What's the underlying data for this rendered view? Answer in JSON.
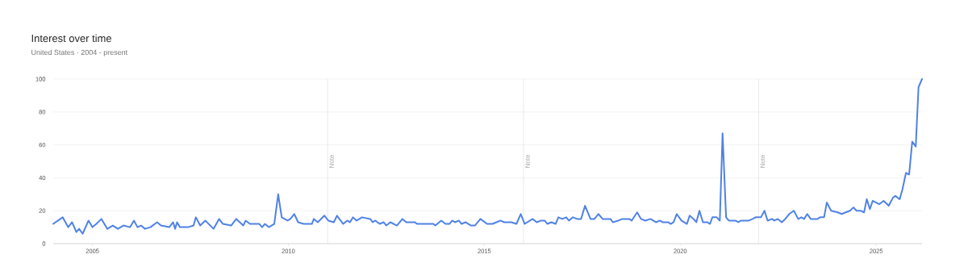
{
  "chart_data": {
    "type": "line",
    "title": "Interest over time",
    "subtitle": "United States · 2004 - present",
    "x": [
      2004.0,
      2004.24,
      2004.38,
      2004.48,
      2004.59,
      2004.66,
      2004.75,
      2004.9,
      2005.0,
      2005.1,
      2005.23,
      2005.38,
      2005.52,
      2005.65,
      2005.79,
      2005.96,
      2006.06,
      2006.15,
      2006.24,
      2006.34,
      2006.48,
      2006.65,
      2006.75,
      2006.96,
      2007.06,
      2007.11,
      2007.16,
      2007.23,
      2007.44,
      2007.58,
      2007.64,
      2007.75,
      2007.88,
      2008.09,
      2008.23,
      2008.33,
      2008.54,
      2008.67,
      2008.85,
      2008.91,
      2009.02,
      2009.26,
      2009.33,
      2009.4,
      2009.5,
      2009.64,
      2009.74,
      2009.83,
      2009.98,
      2010.05,
      2010.15,
      2010.25,
      2010.39,
      2010.6,
      2010.65,
      2010.75,
      2010.92,
      2011.02,
      2011.16,
      2011.24,
      2011.4,
      2011.5,
      2011.57,
      2011.65,
      2011.74,
      2011.88,
      2012.09,
      2012.15,
      2012.22,
      2012.33,
      2012.43,
      2012.5,
      2012.6,
      2012.77,
      2012.91,
      2013.01,
      2013.22,
      2013.29,
      2013.7,
      2013.75,
      2013.9,
      2014.01,
      2014.11,
      2014.18,
      2014.25,
      2014.35,
      2014.42,
      2014.52,
      2014.66,
      2014.76,
      2014.9,
      2015.07,
      2015.21,
      2015.31,
      2015.41,
      2015.51,
      2015.69,
      2015.82,
      2015.93,
      2016.03,
      2016.23,
      2016.34,
      2016.44,
      2016.54,
      2016.61,
      2016.71,
      2016.82,
      2016.89,
      2016.99,
      2017.09,
      2017.16,
      2017.26,
      2017.37,
      2017.47,
      2017.57,
      2017.71,
      2017.81,
      2017.91,
      2018.02,
      2018.22,
      2018.28,
      2018.42,
      2018.52,
      2018.7,
      2018.76,
      2018.9,
      2019.0,
      2019.11,
      2019.24,
      2019.38,
      2019.48,
      2019.55,
      2019.69,
      2019.76,
      2019.83,
      2019.91,
      2020.03,
      2020.17,
      2020.24,
      2020.34,
      2020.41,
      2020.49,
      2020.58,
      2020.69,
      2020.76,
      2020.82,
      2020.93,
      2021.01,
      2021.08,
      2021.17,
      2021.24,
      2021.41,
      2021.48,
      2021.55,
      2021.75,
      2021.85,
      2021.92,
      2022.06,
      2022.15,
      2022.23,
      2022.34,
      2022.4,
      2022.49,
      2022.59,
      2022.68,
      2022.78,
      2022.9,
      2023.01,
      2023.09,
      2023.16,
      2023.24,
      2023.33,
      2023.5,
      2023.57,
      2023.67,
      2023.74,
      2023.85,
      2024.02,
      2024.12,
      2024.22,
      2024.33,
      2024.42,
      2024.5,
      2024.6,
      2024.69,
      2024.76,
      2024.84,
      2024.91,
      2025.08,
      2025.19,
      2025.32,
      2025.43,
      2025.49,
      2025.6,
      2025.67,
      2025.76,
      2025.84,
      2025.92,
      2026.01,
      2026.08,
      2026.17
    ],
    "series": [
      {
        "color": "#4f82e6",
        "values": [
          12,
          16,
          10,
          13,
          7,
          9,
          6,
          14,
          10,
          12,
          15,
          9,
          11,
          9,
          11,
          10,
          14,
          10,
          11,
          9,
          10,
          13,
          11,
          10,
          13,
          9,
          13,
          10,
          10,
          11,
          16,
          11,
          14,
          9,
          15,
          12,
          11,
          15,
          11,
          14,
          12,
          12,
          10,
          12,
          10,
          12,
          30,
          16,
          14,
          15,
          18,
          13,
          12,
          12,
          15,
          13,
          17,
          14,
          13,
          17,
          12,
          14,
          13,
          16,
          14,
          16,
          15,
          13,
          14,
          12,
          13,
          11,
          13,
          11,
          15,
          13,
          13,
          12,
          12,
          11,
          14,
          12,
          12,
          14,
          13,
          14,
          12,
          13,
          11,
          11,
          15,
          12,
          12,
          13,
          14,
          13,
          13,
          12,
          18,
          12,
          15,
          13,
          14,
          14,
          12,
          13,
          12,
          16,
          15,
          16,
          14,
          16,
          15,
          15,
          23,
          15,
          15,
          18,
          15,
          15,
          13,
          14,
          15,
          15,
          14,
          19,
          15,
          14,
          15,
          13,
          14,
          13,
          13,
          12,
          13,
          18,
          14,
          12,
          17,
          15,
          13,
          20,
          13,
          13,
          12,
          16,
          16,
          14,
          67,
          16,
          14,
          14,
          13,
          14,
          14,
          15,
          16,
          16,
          20,
          14,
          15,
          14,
          15,
          13,
          15,
          18,
          20,
          15,
          16,
          15,
          18,
          15,
          15,
          16,
          16,
          25,
          20,
          19,
          18,
          19,
          20,
          22,
          20,
          20,
          19,
          27,
          21,
          26,
          24,
          26,
          23,
          28,
          29,
          27,
          33,
          43,
          42,
          62,
          59,
          95,
          100
        ]
      }
    ],
    "xlim": [
      2004,
      2026.17
    ],
    "ylim": [
      0,
      100
    ],
    "xticks": [
      2005,
      2010,
      2015,
      2020,
      2025
    ],
    "yticks": [
      0,
      20,
      40,
      60,
      80,
      100
    ],
    "grid": "y",
    "ref_lines": [
      {
        "axis": "x",
        "value": 2011,
        "label": "Note",
        "color": "#dadce0"
      },
      {
        "axis": "x",
        "value": 2016,
        "label": "Note",
        "color": "#dadce0"
      },
      {
        "axis": "x",
        "value": 2022,
        "label": "Note",
        "color": "#dadce0"
      }
    ]
  }
}
